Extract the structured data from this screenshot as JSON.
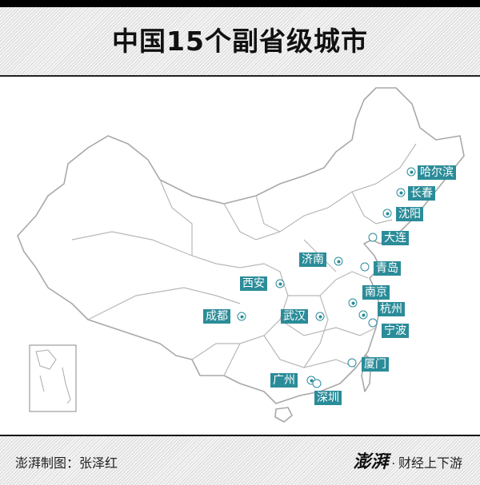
{
  "header": {
    "title": "中国15个副省级城市"
  },
  "colors": {
    "label_bg": "#2b8c99",
    "border": "#a8a8a8"
  },
  "cities": [
    {
      "name": "哈尔滨",
      "marker": "capital"
    },
    {
      "name": "长春",
      "marker": "capital"
    },
    {
      "name": "沈阳",
      "marker": "capital"
    },
    {
      "name": "大连",
      "marker": "ring"
    },
    {
      "name": "济南",
      "marker": "capital"
    },
    {
      "name": "青岛",
      "marker": "ring"
    },
    {
      "name": "西安",
      "marker": "capital"
    },
    {
      "name": "南京",
      "marker": "capital"
    },
    {
      "name": "杭州",
      "marker": "capital"
    },
    {
      "name": "宁波",
      "marker": "ring"
    },
    {
      "name": "成都",
      "marker": "capital"
    },
    {
      "name": "武汉",
      "marker": "capital"
    },
    {
      "name": "厦门",
      "marker": "ring"
    },
    {
      "name": "广州",
      "marker": "capital"
    },
    {
      "name": "深圳",
      "marker": "ring"
    }
  ],
  "footer": {
    "credit": "澎湃制图：张泽红",
    "logo_mark": "澎湃",
    "logo_sep": "·",
    "logo_text": "财经上下游"
  }
}
